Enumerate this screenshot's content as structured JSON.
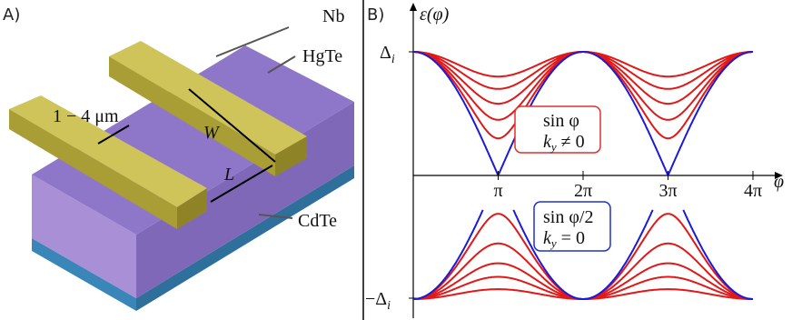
{
  "panel_a": {
    "label": "A)",
    "nb": "Nb",
    "hgte": "HgTe",
    "cdte": "CdTe",
    "length_range": "1 − 4 μm",
    "width": "W",
    "length": "L"
  },
  "panel_b": {
    "label": "B)",
    "y_axis": "ε(φ)",
    "x_axis": "φ",
    "y_top": {
      "symbol": "Δ",
      "sub": "i"
    },
    "y_bottom": {
      "symbol": "−Δ",
      "sub": "i"
    },
    "x_ticks": [
      "π",
      "2π",
      "3π",
      "4π"
    ],
    "red_box": {
      "line1": "sin φ",
      "line2": {
        "k": "k",
        "sub": "y",
        "rest": " ≠ 0"
      }
    },
    "blue_box": {
      "line1": "sin φ/2",
      "line2": {
        "k": "k",
        "sub": "y",
        "rest": " = 0"
      }
    }
  }
}
